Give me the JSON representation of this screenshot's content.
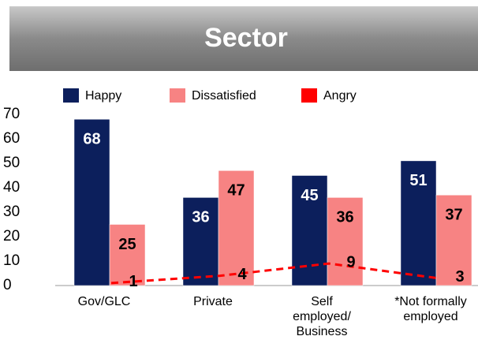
{
  "chart_data": {
    "type": "bar",
    "title": "Sector",
    "categories": [
      "Gov/GLC",
      "Private",
      "Self\nemployed/\nBusiness",
      "*Not formally\nemployed"
    ],
    "series": [
      {
        "name": "Happy",
        "color": "#0c1f5c",
        "values": [
          68,
          36,
          45,
          51
        ]
      },
      {
        "name": "Dissatisfied",
        "color": "#f78383",
        "values": [
          25,
          47,
          36,
          37
        ]
      },
      {
        "name": "Angry",
        "color": "#ff0000",
        "type": "line",
        "values": [
          1,
          4,
          9,
          3
        ]
      }
    ],
    "ylim": [
      0,
      70
    ],
    "yticks": [
      0,
      10,
      20,
      30,
      40,
      50,
      60,
      70
    ],
    "grid": false,
    "legend": "top"
  }
}
